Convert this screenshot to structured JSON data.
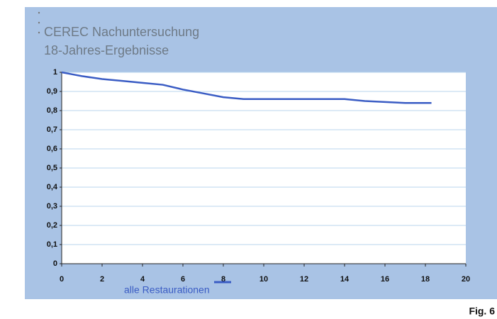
{
  "chart_data": {
    "type": "line",
    "title": "CEREC Nachuntersuchung",
    "subtitle": "18-Jahres-Ergebnisse",
    "figure_label": "Fig. 6",
    "x": [
      0,
      0.5,
      1,
      2,
      3,
      4,
      5,
      6,
      7,
      8,
      9,
      10,
      12,
      14,
      15,
      16,
      17,
      18.3
    ],
    "series": [
      {
        "name": "alle Restaurationen",
        "color": "#3a5cc4",
        "values": [
          1,
          0.99,
          0.98,
          0.965,
          0.955,
          0.945,
          0.935,
          0.91,
          0.89,
          0.87,
          0.86,
          0.86,
          0.86,
          0.86,
          0.85,
          0.845,
          0.84,
          0.84
        ]
      }
    ],
    "xlim": [
      0,
      20
    ],
    "xticks": [
      0,
      2,
      4,
      6,
      8,
      10,
      12,
      14,
      16,
      18,
      20
    ],
    "ylim": [
      0,
      1
    ],
    "yticks": [
      0,
      {
        "value": 0.1,
        "label": "0,1"
      },
      {
        "value": 0.2,
        "label": "0,2"
      },
      {
        "value": 0.3,
        "label": "0,3"
      },
      {
        "value": 0.4,
        "label": "0,4"
      },
      {
        "value": 0.5,
        "label": "0,5"
      },
      {
        "value": 0.6,
        "label": "0,6"
      },
      {
        "value": 0.7,
        "label": "0,7"
      },
      {
        "value": 0.8,
        "label": "0,8"
      },
      {
        "value": 0.9,
        "label": "0,9"
      },
      1
    ],
    "grid": true
  }
}
